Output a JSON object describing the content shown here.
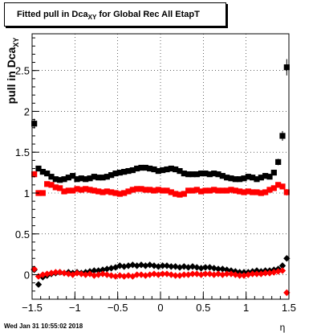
{
  "title": {
    "prefix": "Fitted pull in Dca",
    "subscript": "XY",
    "suffix": " for Global Rec All EtapT"
  },
  "footer": {
    "timestamp": "Wed Jan 31 10:55:02 2018"
  },
  "chart_data": {
    "type": "scatter",
    "title": "Fitted pull in Dca_XY for Global Rec All EtapT",
    "xlabel": "η",
    "ylabel": "pull in Dca_XY",
    "xlim": [
      -1.5,
      1.5
    ],
    "ylim": [
      -0.3,
      2.95
    ],
    "xticks": [
      -1.5,
      -1,
      -0.5,
      0,
      0.5,
      1,
      1.5
    ],
    "xtick_labels": [
      "−1.5",
      "−1",
      "−0.5",
      "0",
      "0.5",
      "1",
      "1.5"
    ],
    "yticks": [
      0,
      0.5,
      1,
      1.5,
      2,
      2.5
    ],
    "ytick_labels": [
      "0",
      "0.5",
      "1",
      "1.5",
      "2",
      "2.5"
    ],
    "grid": true,
    "series": [
      {
        "marker": "square",
        "color": "#000000",
        "x": [
          -1.475,
          -1.425,
          -1.375,
          -1.325,
          -1.275,
          -1.225,
          -1.175,
          -1.125,
          -1.075,
          -1.025,
          -0.975,
          -0.925,
          -0.875,
          -0.825,
          -0.775,
          -0.725,
          -0.675,
          -0.625,
          -0.575,
          -0.525,
          -0.475,
          -0.425,
          -0.375,
          -0.325,
          -0.275,
          -0.225,
          -0.175,
          -0.125,
          -0.075,
          -0.025,
          0.025,
          0.075,
          0.125,
          0.175,
          0.225,
          0.275,
          0.325,
          0.375,
          0.425,
          0.475,
          0.525,
          0.575,
          0.625,
          0.675,
          0.725,
          0.775,
          0.825,
          0.875,
          0.925,
          0.975,
          1.025,
          1.075,
          1.125,
          1.175,
          1.225,
          1.275,
          1.325,
          1.375,
          1.425,
          1.475
        ],
        "y": [
          1.85,
          1.3,
          1.26,
          1.24,
          1.2,
          1.17,
          1.16,
          1.17,
          1.19,
          1.21,
          1.17,
          1.18,
          1.17,
          1.18,
          1.2,
          1.19,
          1.19,
          1.2,
          1.22,
          1.24,
          1.25,
          1.26,
          1.27,
          1.28,
          1.3,
          1.31,
          1.31,
          1.3,
          1.29,
          1.27,
          1.28,
          1.29,
          1.3,
          1.29,
          1.27,
          1.24,
          1.23,
          1.23,
          1.23,
          1.24,
          1.24,
          1.23,
          1.24,
          1.23,
          1.21,
          1.19,
          1.18,
          1.17,
          1.17,
          1.18,
          1.2,
          1.19,
          1.17,
          1.19,
          1.21,
          1.2,
          1.25,
          1.38,
          1.7,
          2.54
        ],
        "yerr": [
          0.06,
          0.02,
          0.02,
          0.02,
          0.02,
          0.02,
          0.02,
          0.02,
          0.02,
          0.02,
          0.02,
          0.02,
          0.02,
          0.02,
          0.02,
          0.02,
          0.02,
          0.02,
          0.02,
          0.02,
          0.02,
          0.02,
          0.02,
          0.02,
          0.02,
          0.02,
          0.02,
          0.02,
          0.02,
          0.02,
          0.02,
          0.02,
          0.02,
          0.02,
          0.02,
          0.02,
          0.02,
          0.02,
          0.02,
          0.02,
          0.02,
          0.02,
          0.02,
          0.02,
          0.02,
          0.02,
          0.02,
          0.02,
          0.02,
          0.02,
          0.02,
          0.02,
          0.02,
          0.02,
          0.02,
          0.02,
          0.03,
          0.04,
          0.06,
          0.1
        ]
      },
      {
        "marker": "square",
        "color": "#ff0000",
        "x": [
          -1.475,
          -1.425,
          -1.375,
          -1.325,
          -1.275,
          -1.225,
          -1.175,
          -1.125,
          -1.075,
          -1.025,
          -0.975,
          -0.925,
          -0.875,
          -0.825,
          -0.775,
          -0.725,
          -0.675,
          -0.625,
          -0.575,
          -0.525,
          -0.475,
          -0.425,
          -0.375,
          -0.325,
          -0.275,
          -0.225,
          -0.175,
          -0.125,
          -0.075,
          -0.025,
          0.025,
          0.075,
          0.125,
          0.175,
          0.225,
          0.275,
          0.325,
          0.375,
          0.425,
          0.475,
          0.525,
          0.575,
          0.625,
          0.675,
          0.725,
          0.775,
          0.825,
          0.875,
          0.925,
          0.975,
          1.025,
          1.075,
          1.125,
          1.175,
          1.225,
          1.275,
          1.325,
          1.375,
          1.425,
          1.475
        ],
        "y": [
          1.23,
          1.0,
          1.0,
          1.11,
          1.1,
          1.07,
          1.06,
          1.02,
          1.03,
          1.03,
          1.05,
          1.04,
          1.05,
          1.04,
          1.03,
          1.02,
          1.01,
          1.02,
          1.01,
          1.0,
          0.99,
          1.0,
          1.02,
          1.04,
          1.05,
          1.05,
          1.04,
          1.04,
          1.03,
          1.04,
          1.03,
          1.03,
          1.01,
          0.99,
          0.98,
          0.99,
          1.03,
          1.03,
          1.04,
          1.02,
          1.03,
          1.03,
          1.04,
          1.03,
          1.03,
          1.03,
          1.04,
          1.03,
          1.02,
          1.01,
          1.02,
          1.01,
          1.01,
          1.0,
          1.01,
          1.04,
          1.06,
          1.1,
          1.08,
          1.01
        ],
        "yerr": [
          0.04,
          0.02,
          0.02,
          0.02,
          0.02,
          0.02,
          0.02,
          0.02,
          0.02,
          0.02,
          0.02,
          0.02,
          0.02,
          0.02,
          0.02,
          0.02,
          0.02,
          0.02,
          0.02,
          0.02,
          0.02,
          0.02,
          0.02,
          0.02,
          0.02,
          0.02,
          0.02,
          0.02,
          0.02,
          0.02,
          0.02,
          0.02,
          0.02,
          0.02,
          0.02,
          0.02,
          0.02,
          0.02,
          0.02,
          0.02,
          0.02,
          0.02,
          0.02,
          0.02,
          0.02,
          0.02,
          0.02,
          0.02,
          0.02,
          0.02,
          0.02,
          0.02,
          0.02,
          0.02,
          0.02,
          0.02,
          0.02,
          0.03,
          0.03,
          0.04
        ]
      },
      {
        "marker": "diamond",
        "color": "#000000",
        "x": [
          -1.475,
          -1.425,
          -1.375,
          -1.325,
          -1.275,
          -1.225,
          -1.175,
          -1.125,
          -1.075,
          -1.025,
          -0.975,
          -0.925,
          -0.875,
          -0.825,
          -0.775,
          -0.725,
          -0.675,
          -0.625,
          -0.575,
          -0.525,
          -0.475,
          -0.425,
          -0.375,
          -0.325,
          -0.275,
          -0.225,
          -0.175,
          -0.125,
          -0.075,
          -0.025,
          0.025,
          0.075,
          0.125,
          0.175,
          0.225,
          0.275,
          0.325,
          0.375,
          0.425,
          0.475,
          0.525,
          0.575,
          0.625,
          0.675,
          0.725,
          0.775,
          0.825,
          0.875,
          0.925,
          0.975,
          1.025,
          1.075,
          1.125,
          1.175,
          1.225,
          1.275,
          1.325,
          1.375,
          1.425,
          1.475
        ],
        "y": [
          0.06,
          -0.12,
          -0.03,
          -0.01,
          0.01,
          0.02,
          0.03,
          0.02,
          0.03,
          0.02,
          0.03,
          0.02,
          0.03,
          0.04,
          0.05,
          0.05,
          0.06,
          0.07,
          0.08,
          0.09,
          0.11,
          0.1,
          0.11,
          0.12,
          0.11,
          0.12,
          0.11,
          0.12,
          0.11,
          0.1,
          0.11,
          0.11,
          0.1,
          0.1,
          0.09,
          0.1,
          0.09,
          0.1,
          0.09,
          0.08,
          0.09,
          0.09,
          0.08,
          0.07,
          0.07,
          0.06,
          0.05,
          0.04,
          0.03,
          0.03,
          0.03,
          0.04,
          0.05,
          0.04,
          0.05,
          0.05,
          0.06,
          0.07,
          0.11,
          0.2
        ],
        "yerr": [
          0.02,
          0.02,
          0.01,
          0.01,
          0.01,
          0.01,
          0.01,
          0.01,
          0.01,
          0.01,
          0.01,
          0.01,
          0.01,
          0.01,
          0.01,
          0.01,
          0.01,
          0.01,
          0.01,
          0.01,
          0.01,
          0.01,
          0.01,
          0.01,
          0.01,
          0.01,
          0.01,
          0.01,
          0.01,
          0.01,
          0.01,
          0.01,
          0.01,
          0.01,
          0.01,
          0.01,
          0.01,
          0.01,
          0.01,
          0.01,
          0.01,
          0.01,
          0.01,
          0.01,
          0.01,
          0.01,
          0.01,
          0.01,
          0.01,
          0.01,
          0.01,
          0.01,
          0.01,
          0.01,
          0.01,
          0.01,
          0.01,
          0.01,
          0.02,
          0.03
        ]
      },
      {
        "marker": "diamond",
        "color": "#ff0000",
        "x": [
          -1.475,
          -1.425,
          -1.375,
          -1.325,
          -1.275,
          -1.225,
          -1.175,
          -1.125,
          -1.075,
          -1.025,
          -0.975,
          -0.925,
          -0.875,
          -0.825,
          -0.775,
          -0.725,
          -0.675,
          -0.625,
          -0.575,
          -0.525,
          -0.475,
          -0.425,
          -0.375,
          -0.325,
          -0.275,
          -0.225,
          -0.175,
          -0.125,
          -0.075,
          -0.025,
          0.025,
          0.075,
          0.125,
          0.175,
          0.225,
          0.275,
          0.325,
          0.375,
          0.425,
          0.475,
          0.525,
          0.575,
          0.625,
          0.675,
          0.725,
          0.775,
          0.825,
          0.875,
          0.925,
          0.975,
          1.025,
          1.075,
          1.125,
          1.175,
          1.225,
          1.275,
          1.325,
          1.375,
          1.425,
          1.475
        ],
        "y": [
          0.07,
          -0.02,
          0.0,
          0.01,
          0.02,
          0.03,
          0.03,
          0.02,
          0.01,
          0.0,
          0.02,
          0.01,
          0.0,
          0.01,
          -0.01,
          0.0,
          0.01,
          0.0,
          -0.01,
          -0.02,
          -0.01,
          -0.02,
          -0.01,
          -0.02,
          0.0,
          0.0,
          -0.01,
          0.0,
          0.01,
          0.0,
          0.01,
          0.01,
          0.0,
          -0.01,
          -0.01,
          0.0,
          0.0,
          0.01,
          0.01,
          0.0,
          0.01,
          0.01,
          0.0,
          0.01,
          0.0,
          0.01,
          0.01,
          0.0,
          -0.01,
          -0.01,
          0.0,
          0.01,
          0.01,
          0.01,
          0.02,
          0.02,
          0.03,
          0.04,
          0.05,
          -0.22
        ],
        "yerr": [
          0.02,
          0.01,
          0.01,
          0.01,
          0.01,
          0.01,
          0.01,
          0.01,
          0.01,
          0.01,
          0.01,
          0.01,
          0.01,
          0.01,
          0.01,
          0.01,
          0.01,
          0.01,
          0.01,
          0.01,
          0.01,
          0.01,
          0.01,
          0.01,
          0.01,
          0.01,
          0.01,
          0.01,
          0.01,
          0.01,
          0.01,
          0.01,
          0.01,
          0.01,
          0.01,
          0.01,
          0.01,
          0.01,
          0.01,
          0.01,
          0.01,
          0.01,
          0.01,
          0.01,
          0.01,
          0.01,
          0.01,
          0.01,
          0.01,
          0.01,
          0.01,
          0.01,
          0.01,
          0.01,
          0.01,
          0.01,
          0.01,
          0.01,
          0.02,
          0.03
        ]
      }
    ]
  }
}
